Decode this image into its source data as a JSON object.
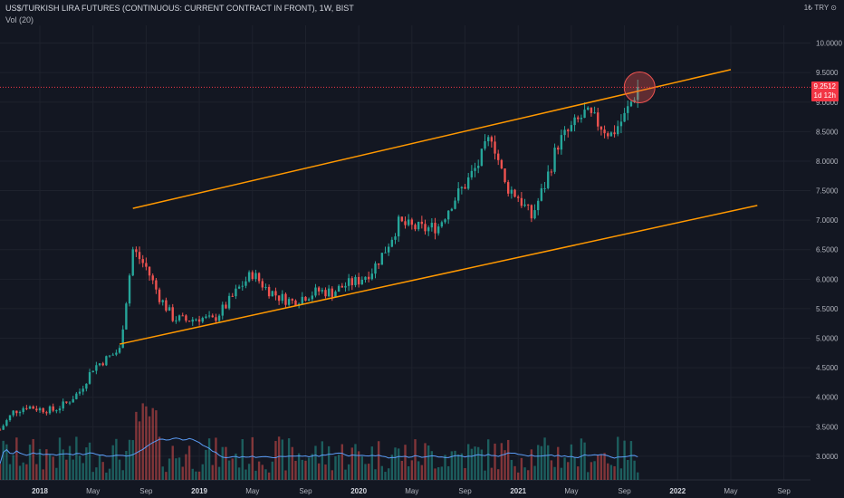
{
  "header": {
    "title": "US$/TURKISH LIRA FUTURES (CONTINUOUS: CURRENT CONTRACT IN FRONT), 1W, BIST",
    "volume_label": "Vol (20)",
    "currency": "1₺ TRY ⊙"
  },
  "price_badge": {
    "price": "9.2512",
    "countdown": "1d 12h"
  },
  "colors": {
    "background": "#131722",
    "up": "#26a69a",
    "down": "#ef5350",
    "channel": "#ff9800",
    "badge": "#f23645",
    "vol_ma": "#5b9cf6"
  },
  "chart_data": {
    "type": "candlestick",
    "title": "US$/TURKISH LIRA FUTURES (CONTINUOUS: CURRENT CONTRACT IN FRONT), 1W, BIST",
    "ylim": [
      2.6,
      10.3
    ],
    "y_ticks": [
      "10.0000",
      "9.5000",
      "9.0000",
      "8.5000",
      "8.0000",
      "7.5000",
      "7.0000",
      "6.5000",
      "6.0000",
      "5.5000",
      "5.0000",
      "4.5000",
      "4.0000",
      "3.5000",
      "3.0000"
    ],
    "y_tick_values": [
      10.0,
      9.5,
      9.0,
      8.5,
      8.0,
      7.5,
      7.0,
      6.5,
      6.0,
      5.5,
      5.0,
      4.5,
      4.0,
      3.5,
      3.0
    ],
    "x_ticks": [
      {
        "label": "2018",
        "bold": true
      },
      {
        "label": "May",
        "bold": false
      },
      {
        "label": "Sep",
        "bold": false
      },
      {
        "label": "2019",
        "bold": true
      },
      {
        "label": "May",
        "bold": false
      },
      {
        "label": "Sep",
        "bold": false
      },
      {
        "label": "2020",
        "bold": true
      },
      {
        "label": "May",
        "bold": false
      },
      {
        "label": "Sep",
        "bold": false
      },
      {
        "label": "2021",
        "bold": true
      },
      {
        "label": "May",
        "bold": false
      },
      {
        "label": "Sep",
        "bold": false
      },
      {
        "label": "2022",
        "bold": true
      },
      {
        "label": "May",
        "bold": false
      },
      {
        "label": "Sep",
        "bold": false
      }
    ],
    "x_range": [
      "2017-10",
      "2022-11"
    ],
    "close_path": [
      [
        "2017-10",
        3.45
      ],
      [
        "2017-11",
        3.75
      ],
      [
        "2017-12",
        3.85
      ],
      [
        "2018-01",
        3.8
      ],
      [
        "2018-02",
        3.78
      ],
      [
        "2018-03",
        3.9
      ],
      [
        "2018-04",
        4.1
      ],
      [
        "2018-05",
        4.5
      ],
      [
        "2018-06",
        4.65
      ],
      [
        "2018-07",
        4.8
      ],
      [
        "2018-08",
        6.5
      ],
      [
        "2018-09",
        6.2
      ],
      [
        "2018-10",
        5.7
      ],
      [
        "2018-11",
        5.35
      ],
      [
        "2018-12",
        5.3
      ],
      [
        "2019-01",
        5.35
      ],
      [
        "2019-02",
        5.3
      ],
      [
        "2019-03",
        5.55
      ],
      [
        "2019-04",
        5.85
      ],
      [
        "2019-05",
        6.1
      ],
      [
        "2019-06",
        5.85
      ],
      [
        "2019-07",
        5.7
      ],
      [
        "2019-08",
        5.62
      ],
      [
        "2019-09",
        5.72
      ],
      [
        "2019-10",
        5.8
      ],
      [
        "2019-11",
        5.78
      ],
      [
        "2019-12",
        5.9
      ],
      [
        "2020-01",
        5.98
      ],
      [
        "2020-02",
        6.15
      ],
      [
        "2020-03",
        6.5
      ],
      [
        "2020-04",
        6.95
      ],
      [
        "2020-05",
        6.88
      ],
      [
        "2020-06",
        6.85
      ],
      [
        "2020-07",
        6.9
      ],
      [
        "2020-08",
        7.3
      ],
      [
        "2020-09",
        7.6
      ],
      [
        "2020-10",
        7.95
      ],
      [
        "2020-11",
        8.45
      ],
      [
        "2020-12",
        7.6
      ],
      [
        "2021-01",
        7.4
      ],
      [
        "2021-02",
        7.05
      ],
      [
        "2021-03",
        7.6
      ],
      [
        "2021-04",
        8.3
      ],
      [
        "2021-05",
        8.55
      ],
      [
        "2021-06",
        8.8
      ],
      [
        "2021-07",
        8.65
      ],
      [
        "2021-08",
        8.45
      ],
      [
        "2021-09",
        8.75
      ],
      [
        "2021-10",
        9.25
      ]
    ],
    "volume_ma_label": "Vol (20)",
    "channel_upper": [
      [
        "2018-08",
        7.2
      ],
      [
        "2022-05",
        9.55
      ]
    ],
    "channel_lower": [
      [
        "2018-07",
        4.9
      ],
      [
        "2022-07",
        7.25
      ]
    ],
    "last_price": 9.2512,
    "highlight_circle_at": [
      "2021-10",
      9.25
    ]
  }
}
